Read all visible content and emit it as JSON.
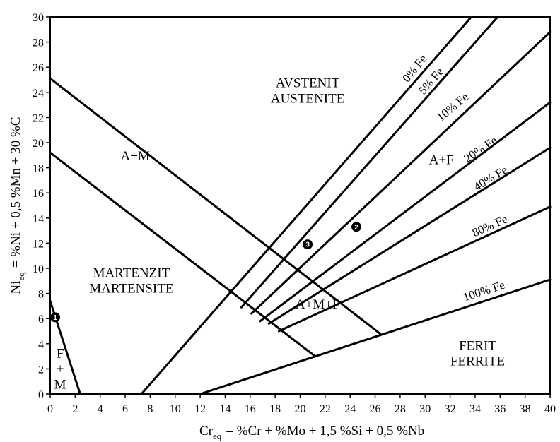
{
  "chart_data": {
    "type": "diagram",
    "xlabel": {
      "main": "Cr",
      "sub": "eq",
      "rest": "= %Cr + %Mo + 1,5 %Si + 0,5 %Nb"
    },
    "ylabel": {
      "main": "Ni",
      "sub": "eq",
      "rest": "= %Ni + 0,5 %Mn + 30 %C"
    },
    "xlim": [
      0,
      40
    ],
    "ylim": [
      0,
      30
    ],
    "xticks": [
      "0",
      "2",
      "4",
      "6",
      "8",
      "10",
      "12",
      "14",
      "16",
      "18",
      "20",
      "22",
      "24",
      "26",
      "28",
      "30",
      "32",
      "34",
      "36",
      "38",
      "40"
    ],
    "yticks": [
      "0",
      "2",
      "4",
      "6",
      "8",
      "10",
      "12",
      "14",
      "16",
      "18",
      "20",
      "22",
      "24",
      "26",
      "28",
      "30"
    ],
    "lines": [
      {
        "name": "boundary-austenite-am",
        "points": [
          [
            0,
            25.1
          ],
          [
            26.4,
            4.8
          ]
        ]
      },
      {
        "name": "boundary-am-martensite",
        "points": [
          [
            0,
            19.2
          ],
          [
            21.2,
            3
          ]
        ]
      },
      {
        "name": "boundary-martensite-ferrite",
        "points": [
          [
            0,
            7.4
          ],
          [
            2.4,
            0
          ]
        ]
      },
      {
        "name": "boundary-ferrite-left",
        "points": [
          [
            7.3,
            0
          ],
          [
            33.7,
            30
          ]
        ]
      },
      {
        "name": "line-5-fe",
        "points": [
          [
            15.3,
            6.9
          ],
          [
            35.8,
            30
          ]
        ]
      },
      {
        "name": "line-10-fe",
        "points": [
          [
            16.1,
            6.4
          ],
          [
            40,
            28.8
          ]
        ]
      },
      {
        "name": "line-20-fe",
        "points": [
          [
            16.8,
            5.8
          ],
          [
            40,
            23.2
          ]
        ]
      },
      {
        "name": "line-40-fe",
        "points": [
          [
            17.5,
            5.6
          ],
          [
            40,
            19.6
          ]
        ]
      },
      {
        "name": "line-80-fe",
        "points": [
          [
            18.3,
            5
          ],
          [
            40,
            14.9
          ]
        ]
      },
      {
        "name": "line-100-fe",
        "points": [
          [
            12,
            0
          ],
          [
            40,
            9.1
          ]
        ]
      }
    ],
    "iso_labels": [
      {
        "text": "0% Fe",
        "x": 29.4,
        "y": 25.7,
        "angle": -51
      },
      {
        "text": "5% Fe",
        "x": 30.7,
        "y": 24.7,
        "angle": -49
      },
      {
        "text": "10% Fe",
        "x": 32.4,
        "y": 22.6,
        "angle": -40
      },
      {
        "text": "20% Fe",
        "x": 34.6,
        "y": 19.2,
        "angle": -34
      },
      {
        "text": "40% Fe",
        "x": 35.4,
        "y": 16.9,
        "angle": -31
      },
      {
        "text": "80% Fe",
        "x": 35.3,
        "y": 13.1,
        "angle": -24
      },
      {
        "text": "100% Fe",
        "x": 34.8,
        "y": 7.9,
        "angle": -18
      }
    ],
    "regions": [
      {
        "lines": [
          "AVSTENIT",
          "AUSTENITE"
        ],
        "x": 20.6,
        "y": 24.4
      },
      {
        "lines": [
          "A+M"
        ],
        "x": 6.8,
        "y": 18.6
      },
      {
        "lines": [
          "A+F"
        ],
        "x": 31.3,
        "y": 18.3
      },
      {
        "lines": [
          "MARTENZIT",
          "MARTENSITE"
        ],
        "x": 6.5,
        "y": 9.3
      },
      {
        "lines": [
          "A+M+F"
        ],
        "x": 21.4,
        "y": 6.8
      },
      {
        "lines": [
          "FERIT",
          "FERRITE"
        ],
        "x": 34.2,
        "y": 3.5
      },
      {
        "lines": [
          "F",
          "+",
          "M"
        ],
        "x": 0.8,
        "y": 2.9
      }
    ],
    "points": [
      {
        "label": "1",
        "x": 0.4,
        "y": 6.1
      },
      {
        "label": "2",
        "x": 24.5,
        "y": 13.3
      },
      {
        "label": "3",
        "x": 20.6,
        "y": 11.9
      }
    ]
  }
}
